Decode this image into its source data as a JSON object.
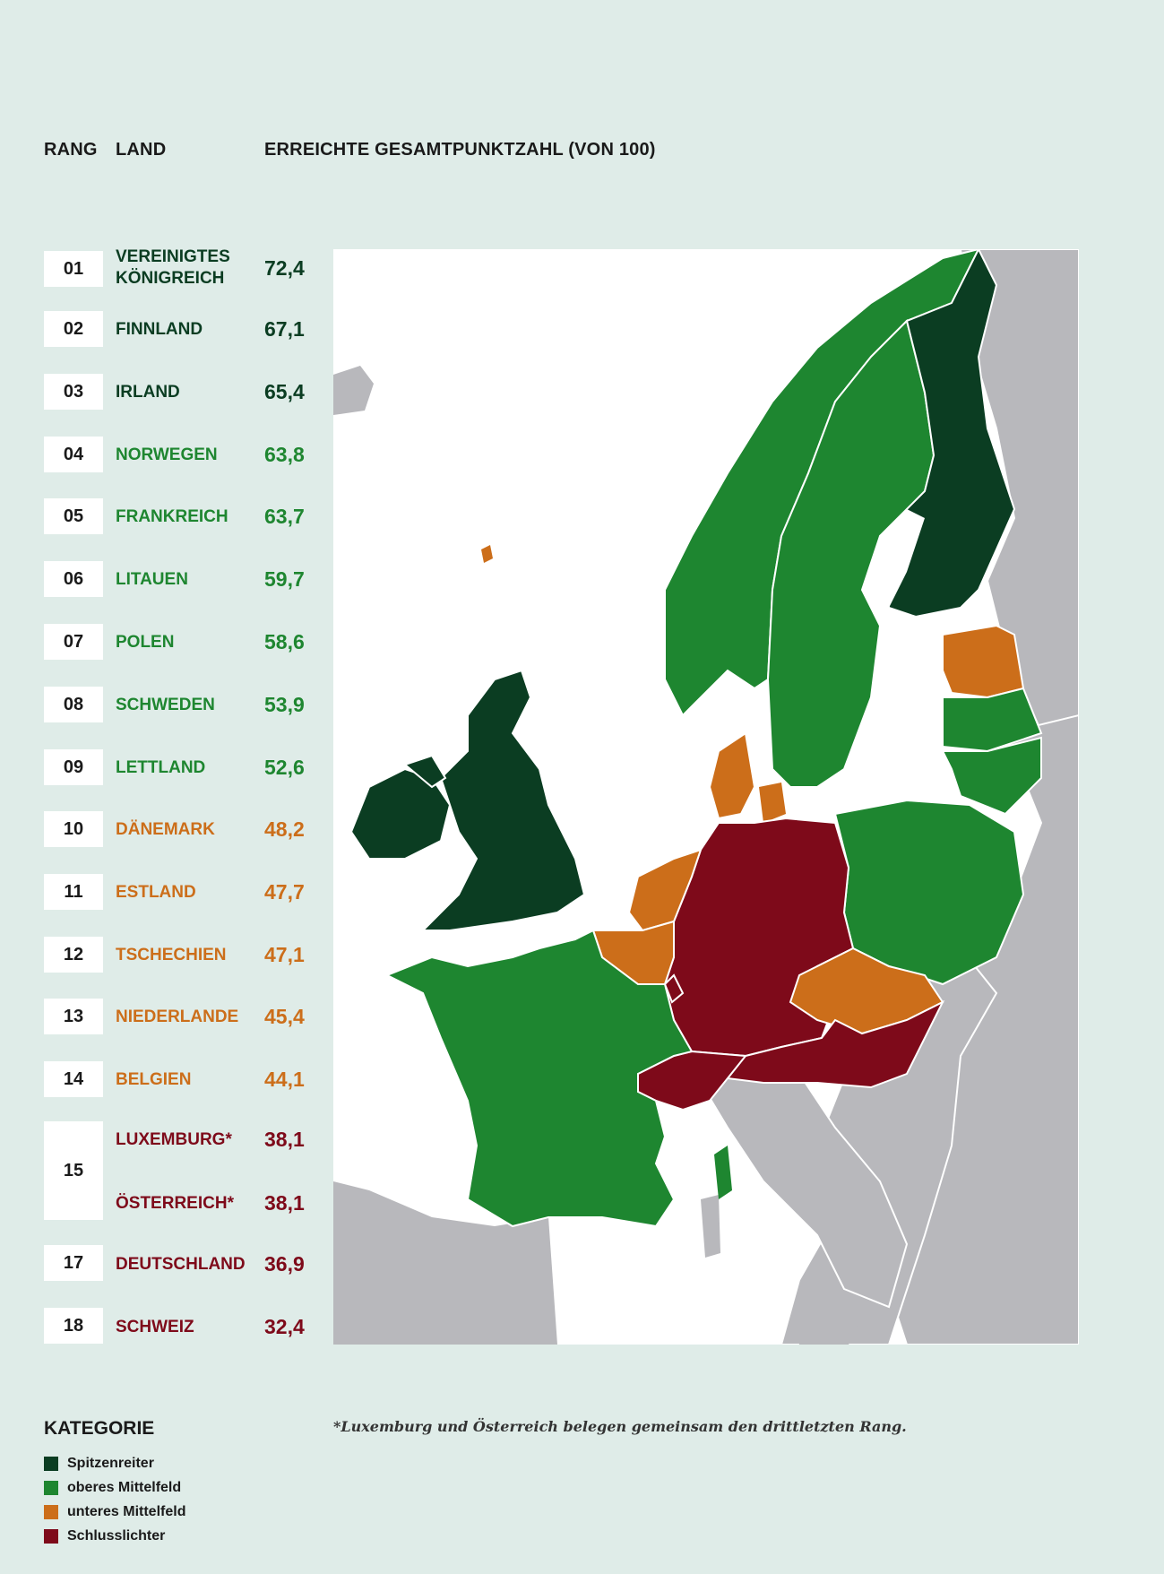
{
  "headers": {
    "rank": "RANG",
    "country": "LAND",
    "score": "ERREICHTE GESAMTPUNKTZAHL (VON 100)"
  },
  "ranking": [
    {
      "rank": "01",
      "country_line1": "VEREINIGTES",
      "country_line2": "KÖNIGREICH",
      "score": "72,4",
      "category": "Spitzenreiter"
    },
    {
      "rank": "02",
      "country": "FINNLAND",
      "score": "67,1",
      "category": "Spitzenreiter"
    },
    {
      "rank": "03",
      "country": "IRLAND",
      "score": "65,4",
      "category": "Spitzenreiter"
    },
    {
      "rank": "04",
      "country": "NORWEGEN",
      "score": "63,8",
      "category": "oberes Mittelfeld"
    },
    {
      "rank": "05",
      "country": "FRANKREICH",
      "score": "63,7",
      "category": "oberes Mittelfeld"
    },
    {
      "rank": "06",
      "country": "LITAUEN",
      "score": "59,7",
      "category": "oberes Mittelfeld"
    },
    {
      "rank": "07",
      "country": "POLEN",
      "score": "58,6",
      "category": "oberes Mittelfeld"
    },
    {
      "rank": "08",
      "country": "SCHWEDEN",
      "score": "53,9",
      "category": "oberes Mittelfeld"
    },
    {
      "rank": "09",
      "country": "LETTLAND",
      "score": "52,6",
      "category": "oberes Mittelfeld"
    },
    {
      "rank": "10",
      "country": "DÄNEMARK",
      "score": "48,2",
      "category": "unteres Mittelfeld"
    },
    {
      "rank": "11",
      "country": "ESTLAND",
      "score": "47,7",
      "category": "unteres Mittelfeld"
    },
    {
      "rank": "12",
      "country": "TSCHECHIEN",
      "score": "47,1",
      "category": "unteres Mittelfeld"
    },
    {
      "rank": "13",
      "country": "NIEDERLANDE",
      "score": "45,4",
      "category": "unteres Mittelfeld"
    },
    {
      "rank": "14",
      "country": "BELGIEN",
      "score": "44,1",
      "category": "unteres Mittelfeld"
    },
    {
      "rank": "15",
      "country": "LUXEMBURG*",
      "score": "38,1",
      "category": "Schlusslichter"
    },
    {
      "rank": "15",
      "country": "ÖSTERREICH*",
      "score": "38,1",
      "category": "Schlusslichter"
    },
    {
      "rank": "17",
      "country": "DEUTSCHLAND",
      "score": "36,9",
      "category": "Schlusslichter"
    },
    {
      "rank": "18",
      "country": "SCHWEIZ",
      "score": "32,4",
      "category": "Schlusslichter"
    }
  ],
  "legend": {
    "title": "KATEGORIE",
    "items": [
      {
        "label": "Spitzenreiter",
        "color": "#0b3d22"
      },
      {
        "label": "oberes Mittelfeld",
        "color": "#1e8630"
      },
      {
        "label": "unteres Mittelfeld",
        "color": "#cc6e1a"
      },
      {
        "label": "Schlusslichter",
        "color": "#7e0a1a"
      }
    ]
  },
  "footnote": "*Luxemburg und Österreich belegen gemeinsam den drittletzten Rang.",
  "map_colors": {
    "sea": "#ffffff",
    "other_land": "#b8b8bc",
    "border": "#ffffff"
  }
}
